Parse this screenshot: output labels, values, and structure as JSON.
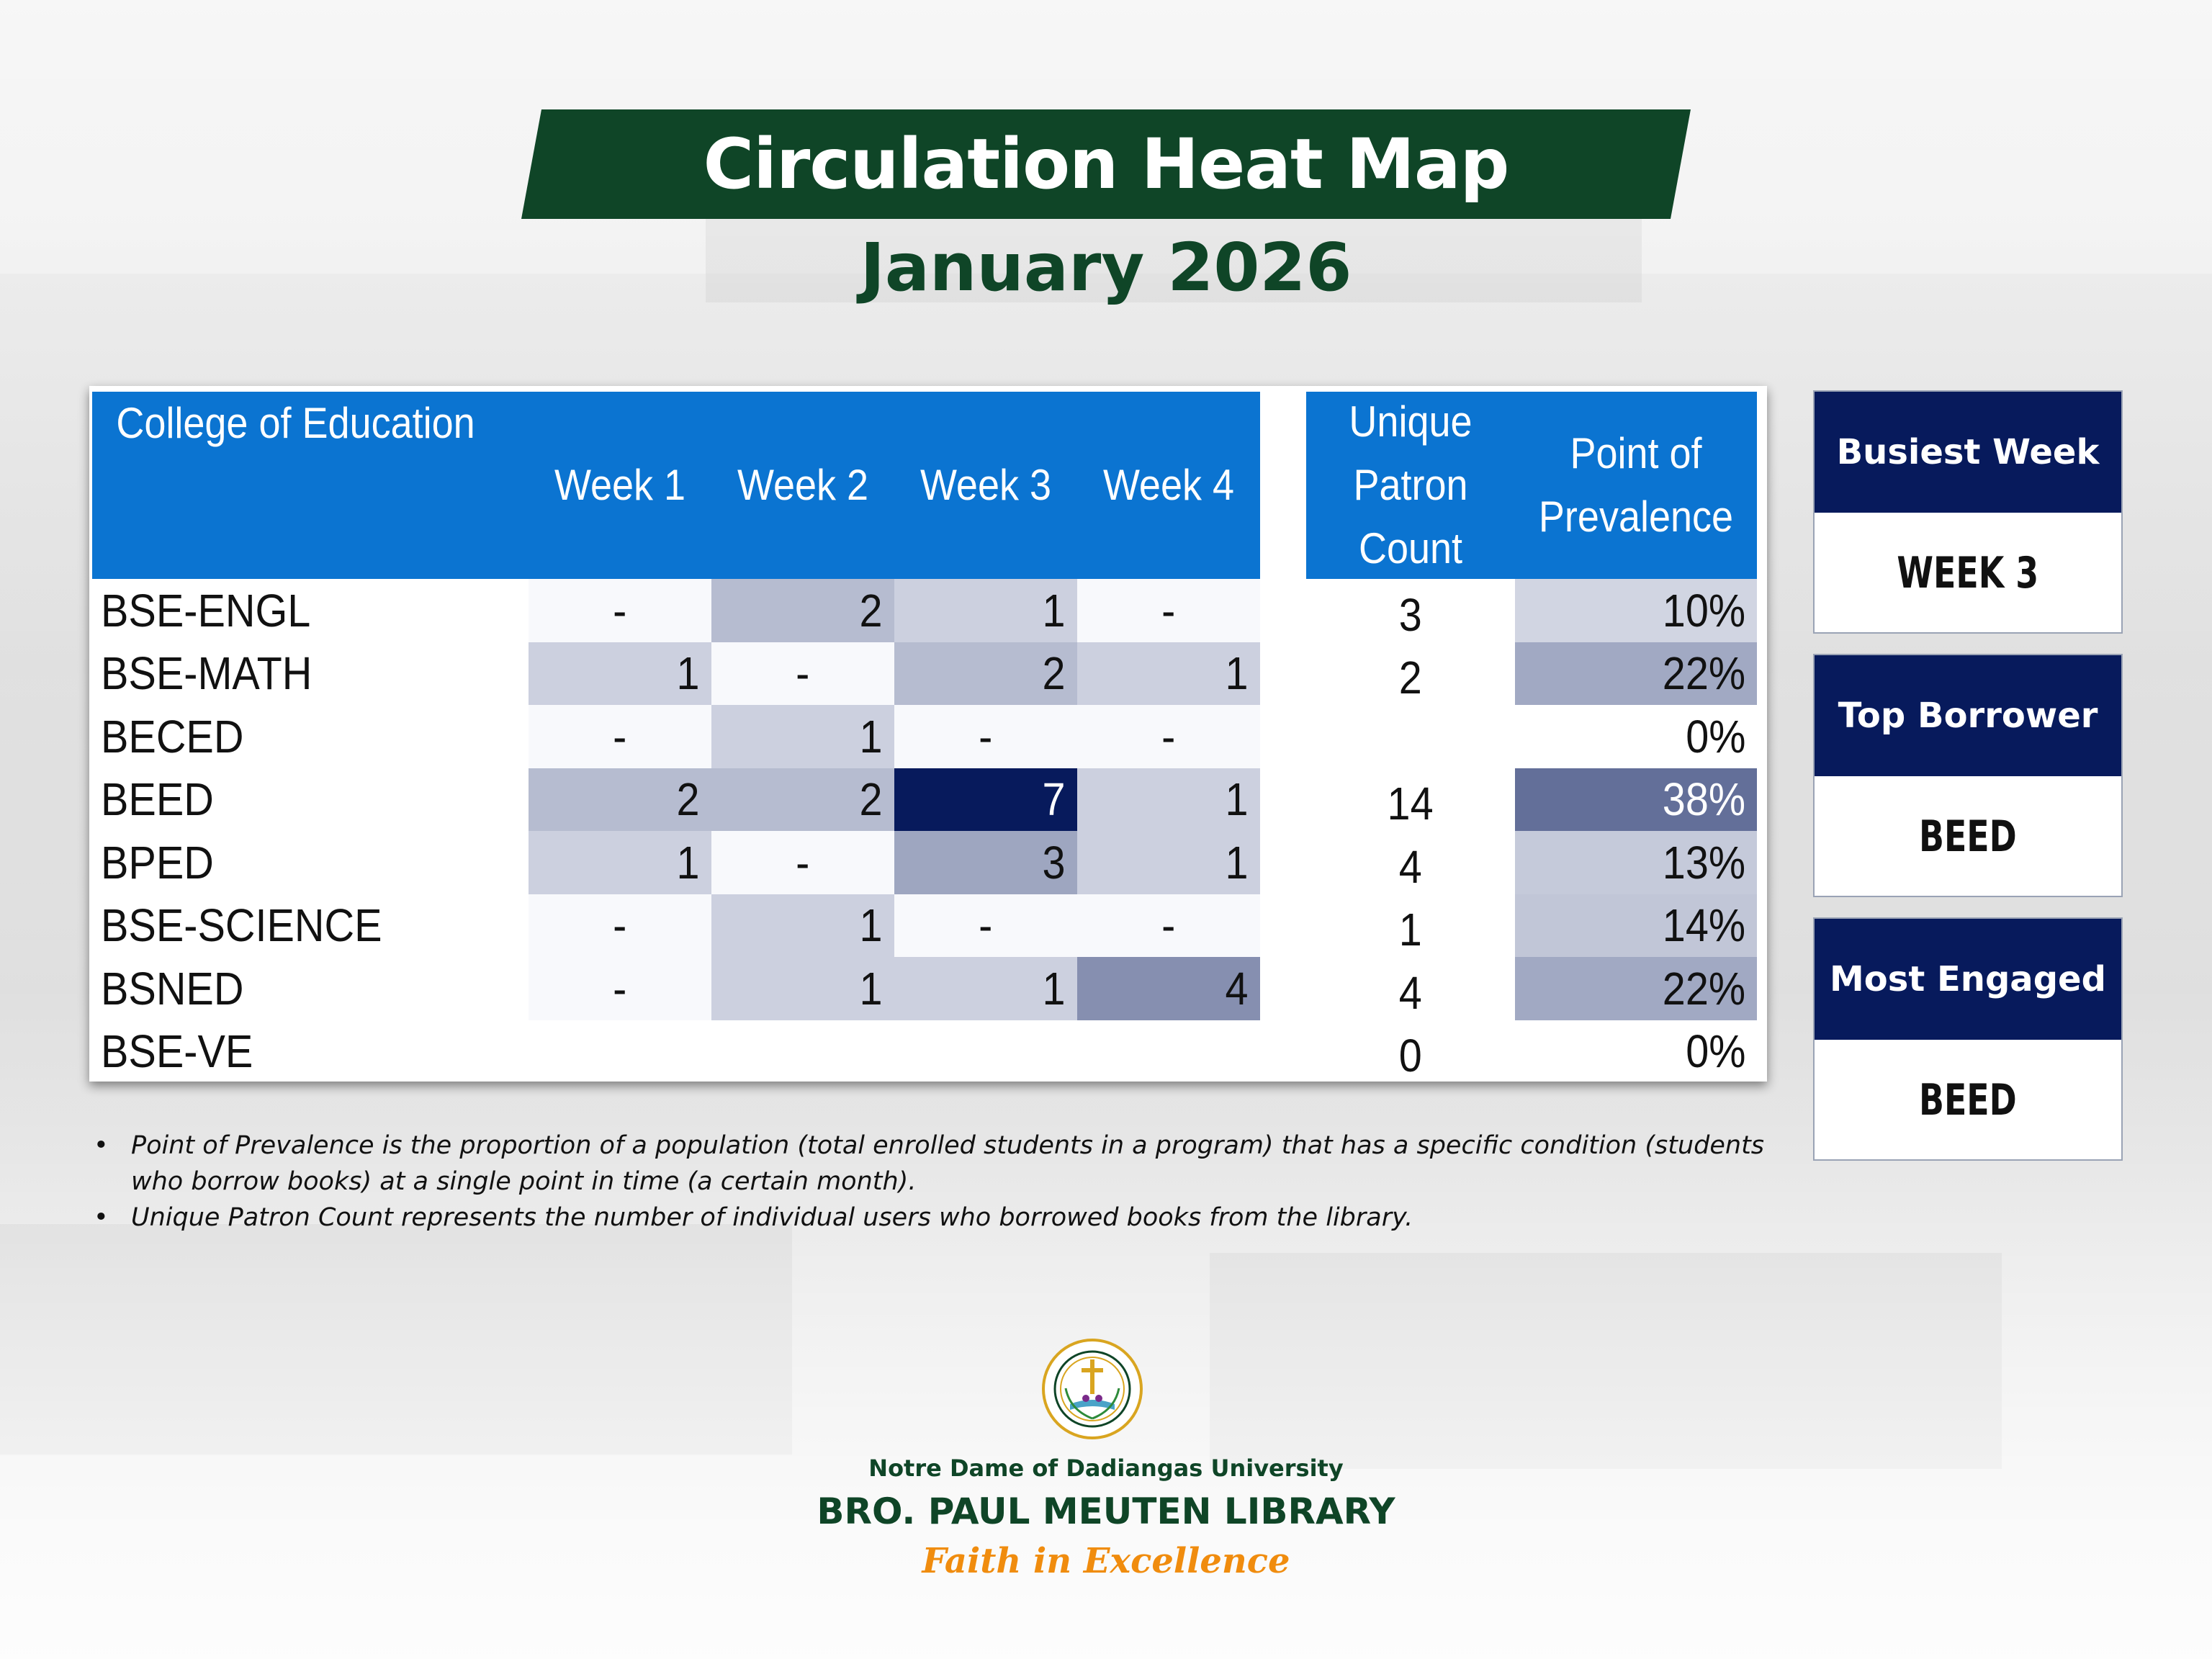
{
  "title": "Circulation Heat Map",
  "subtitle": "January 2026",
  "colors": {
    "brand_green": "#0f4527",
    "header_blue": "#0b74d1",
    "navy": "#071a5c",
    "motto_orange": "#f08c0e"
  },
  "chart_data": {
    "type": "heatmap",
    "row_header": "College of Education",
    "columns": [
      "Week 1",
      "Week 2",
      "Week 3",
      "Week 4"
    ],
    "rows": [
      {
        "program": "BSE-ENGL",
        "weeks": [
          "-",
          "2",
          "1",
          "-"
        ],
        "unique_patron_count": "3",
        "point_of_prevalence": "10%"
      },
      {
        "program": "BSE-MATH",
        "weeks": [
          "1",
          "-",
          "2",
          "1"
        ],
        "unique_patron_count": "2",
        "point_of_prevalence": "22%"
      },
      {
        "program": "BECED",
        "weeks": [
          "-",
          "1",
          "-",
          "-"
        ],
        "unique_patron_count": "",
        "point_of_prevalence": "0%"
      },
      {
        "program": "BEED",
        "weeks": [
          "2",
          "2",
          "7",
          "1"
        ],
        "unique_patron_count": "14",
        "point_of_prevalence": "38%"
      },
      {
        "program": "BPED",
        "weeks": [
          "1",
          "-",
          "3",
          "1"
        ],
        "unique_patron_count": "4",
        "point_of_prevalence": "13%"
      },
      {
        "program": "BSE-SCIENCE",
        "weeks": [
          "-",
          "1",
          "-",
          "-"
        ],
        "unique_patron_count": "1",
        "point_of_prevalence": "14%"
      },
      {
        "program": "BSNED",
        "weeks": [
          "-",
          "1",
          "1",
          "4"
        ],
        "unique_patron_count": "4",
        "point_of_prevalence": "22%"
      },
      {
        "program": "BSE-VE",
        "weeks": [
          "",
          "",
          "",
          ""
        ],
        "unique_patron_count": "0",
        "point_of_prevalence": "0%"
      }
    ],
    "unique_patron_header": [
      "Unique",
      "Patron",
      "Count"
    ],
    "prevalence_header": [
      "Point of",
      "Prevalence"
    ],
    "color_scale": {
      "low": "#ffffff",
      "high": "#071a5c"
    }
  },
  "stats": [
    {
      "label": "Busiest Week",
      "value": "WEEK 3"
    },
    {
      "label": "Top Borrower",
      "value": "BEED"
    },
    {
      "label": "Most Engaged",
      "value": "BEED"
    }
  ],
  "notes": [
    {
      "bullet": "•",
      "text": "Point of Prevalence is the proportion of a population (total enrolled students in a program) that has a specific condition (students who borrow books) at a single point in time (a certain month)."
    },
    {
      "bullet": "•",
      "text": "Unique Patron Count represents the number of individual users who borrowed books from the library."
    }
  ],
  "footer": {
    "university": "Notre Dame of Dadiangas University",
    "library": "BRO. PAUL MEUTEN LIBRARY",
    "motto": "Faith in Excellence"
  }
}
